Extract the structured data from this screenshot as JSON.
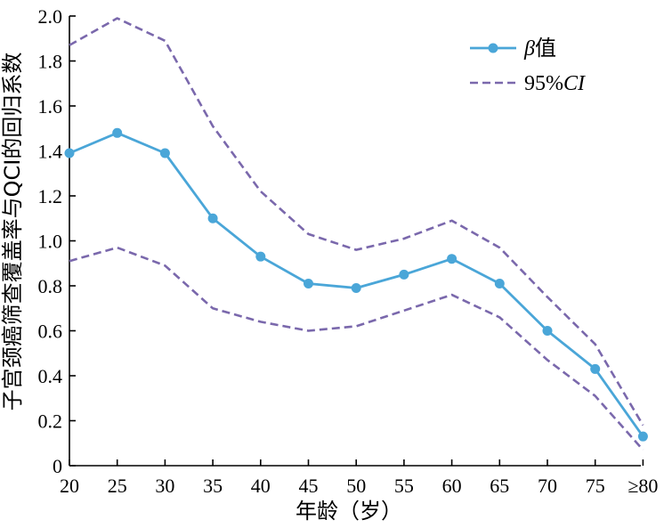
{
  "chart_data": {
    "type": "line",
    "title": "",
    "xlabel": "年龄（岁）",
    "ylabel": "子宫颈癌筛查覆盖率与QCI的回归系数",
    "categories": [
      "20",
      "25",
      "30",
      "35",
      "40",
      "45",
      "50",
      "55",
      "60",
      "65",
      "70",
      "75",
      "≥80"
    ],
    "ylim": [
      0,
      2.0
    ],
    "yticks": [
      "0",
      "0.2",
      "0.4",
      "0.6",
      "0.8",
      "1.0",
      "1.2",
      "1.4",
      "1.6",
      "1.8",
      "2.0"
    ],
    "grid": false,
    "legend_position": "top-right",
    "series": [
      {
        "name": "β值",
        "name_prefix": "β",
        "name_suffix": "值",
        "style": "solid-markers",
        "color": "#4aa6d8",
        "values": [
          1.39,
          1.48,
          1.39,
          1.1,
          0.93,
          0.81,
          0.79,
          0.85,
          0.92,
          0.81,
          0.6,
          0.43,
          0.13
        ]
      },
      {
        "name": "95%CI upper",
        "style": "dashed",
        "color": "#7a68ac",
        "values": [
          1.87,
          1.99,
          1.89,
          1.51,
          1.22,
          1.03,
          0.96,
          1.01,
          1.09,
          0.97,
          0.75,
          0.54,
          0.18
        ]
      },
      {
        "name": "95%CI lower",
        "style": "dashed",
        "color": "#7a68ac",
        "values": [
          0.91,
          0.97,
          0.89,
          0.7,
          0.64,
          0.6,
          0.62,
          0.69,
          0.76,
          0.66,
          0.47,
          0.31,
          0.07
        ]
      }
    ],
    "legend": [
      {
        "label_prefix": "β",
        "label_suffix": "值",
        "style": "solid-markers",
        "color": "#4aa6d8"
      },
      {
        "label_prefix": "95%",
        "label_suffix": "CI",
        "style": "dashed",
        "color": "#7a68ac"
      }
    ]
  }
}
